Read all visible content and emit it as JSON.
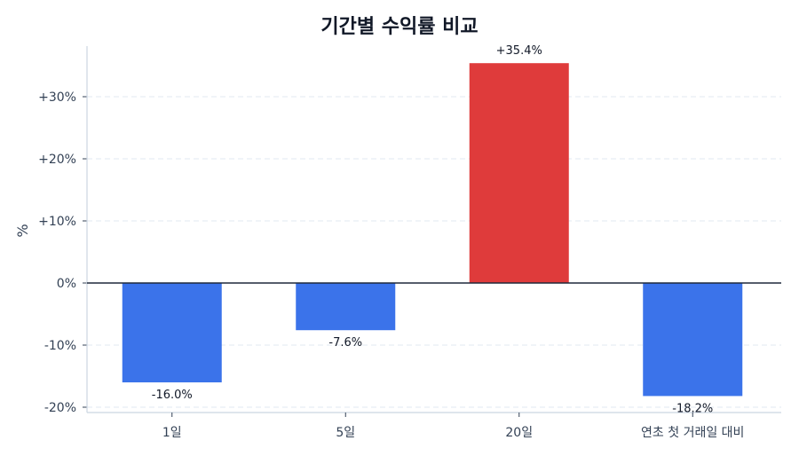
{
  "title": "기간별 수익률 비교",
  "chart_data": {
    "type": "bar",
    "title": "기간별 수익률 비교",
    "xlabel": "",
    "ylabel": "%",
    "categories": [
      "1일",
      "5일",
      "20일",
      "연초 첫 거래일 대비"
    ],
    "values": [
      -16.0,
      -7.6,
      35.4,
      -18.2
    ],
    "data_labels": [
      "-16.0%",
      "-7.6%",
      "+35.4%",
      "-18.2%"
    ],
    "bar_colors": [
      "#3b73ea",
      "#3b73ea",
      "#df3b3b",
      "#3b73ea"
    ],
    "ylim": [
      -21,
      38
    ],
    "yticks": [
      -20,
      -10,
      0,
      10,
      20,
      30
    ],
    "ytick_labels": [
      "-20%",
      "-10%",
      "0%",
      "+10%",
      "+20%",
      "+30%"
    ],
    "grid": "horizontal dashed",
    "legend": null
  },
  "colors": {
    "negative": "#3b73ea",
    "positive": "#df3b3b",
    "zero_line": "#1e293b",
    "grid": "#e2e8f0",
    "axis": "#cbd5e1"
  }
}
